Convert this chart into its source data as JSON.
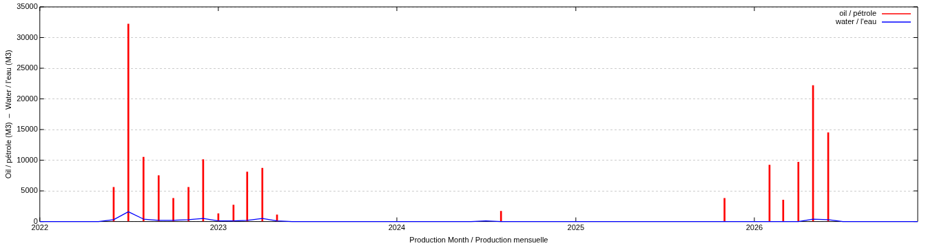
{
  "chart_data": {
    "type": "bar",
    "xlabel": "Production Month / Production mensuelle",
    "ylabel": "Oil / pétrole (M3)  –  Water / l'eau (M3)",
    "xlim": [
      "2022-01",
      "2026-12"
    ],
    "xticks": [
      "2022",
      "2023",
      "2024",
      "2025",
      "2026"
    ],
    "ylim": [
      0,
      35000
    ],
    "yticks": [
      0,
      5000,
      10000,
      15000,
      20000,
      25000,
      30000,
      35000
    ],
    "grid": "y",
    "legend": "top right",
    "marker": "none",
    "line_style": "solid",
    "series": [
      {
        "name": "oil / pétrole",
        "color": "#ff0000",
        "x": [
          "2022-06",
          "2022-07",
          "2022-08",
          "2022-09",
          "2022-10",
          "2022-11",
          "2022-12",
          "2023-01",
          "2023-02",
          "2023-03",
          "2023-04",
          "2023-05",
          "2024-08",
          "2025-11",
          "2026-02",
          "2026-03",
          "2026-04",
          "2026-05",
          "2026-06"
        ],
        "values": [
          5600,
          32200,
          10500,
          7500,
          3800,
          5600,
          10100,
          1300,
          2700,
          8100,
          8700,
          1100,
          1700,
          3800,
          9200,
          3500,
          9700,
          22200,
          14500
        ]
      },
      {
        "name": "water / l'eau",
        "type": "line",
        "color": "#0000ff",
        "x": [
          "2022-01",
          "2022-05",
          "2022-06",
          "2022-07",
          "2022-08",
          "2022-09",
          "2022-10",
          "2022-11",
          "2022-12",
          "2023-01",
          "2023-02",
          "2023-03",
          "2023-04",
          "2023-05",
          "2023-06",
          "2024-06",
          "2024-07",
          "2024-08",
          "2026-04",
          "2026-05",
          "2026-06",
          "2026-07",
          "2026-12"
        ],
        "values": [
          0,
          0,
          300,
          1600,
          400,
          200,
          200,
          300,
          500,
          100,
          100,
          200,
          500,
          100,
          0,
          0,
          100,
          0,
          0,
          400,
          300,
          0,
          0
        ]
      }
    ]
  }
}
